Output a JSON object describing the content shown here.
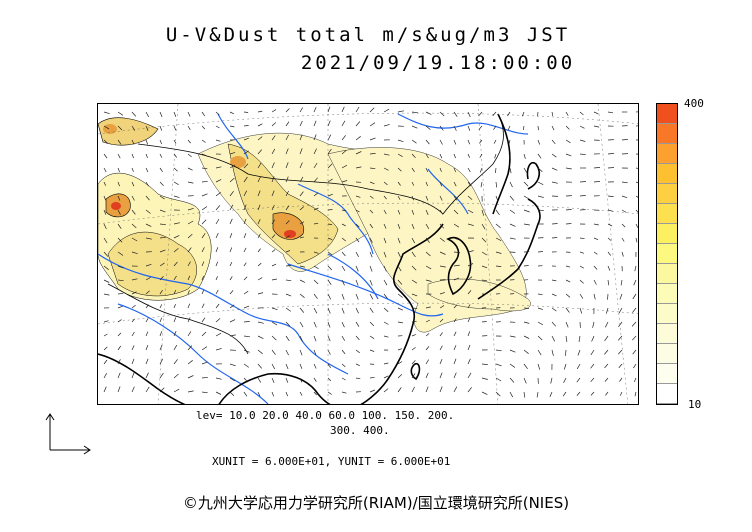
{
  "title_line1": "U-V&Dust total m/s&ug/m3 JST",
  "title_line2": "2021/09/19.18:00:00",
  "legend": {
    "max_label": "400",
    "min_label": "10",
    "colors": [
      "#f0501e",
      "#f87828",
      "#fca030",
      "#fcc030",
      "#fcd040",
      "#fce050",
      "#fcf060",
      "#fcf880",
      "#fcf8a0",
      "#fcfcb8",
      "#fcfcc8",
      "#fcfcd8",
      "#fdfde4",
      "#fefeee",
      "#ffffff"
    ]
  },
  "levels_line1": "lev= 10.0 20.0 40.0 60.0 100. 150. 200.",
  "levels_line2": "300. 400.",
  "units_line": "XUNIT = 6.000E+01, YUNIT = 6.000E+01",
  "copyright": "©九州大学応用力学研究所(RIAM)/国立環境研究所(NIES)",
  "map_colors": {
    "dust_light": "#fdf6c4",
    "dust_mid": "#f5e38c",
    "dust_high": "#e9b24a",
    "dust_peak": "#e04020",
    "river": "#2266ee",
    "coast": "#000000"
  }
}
